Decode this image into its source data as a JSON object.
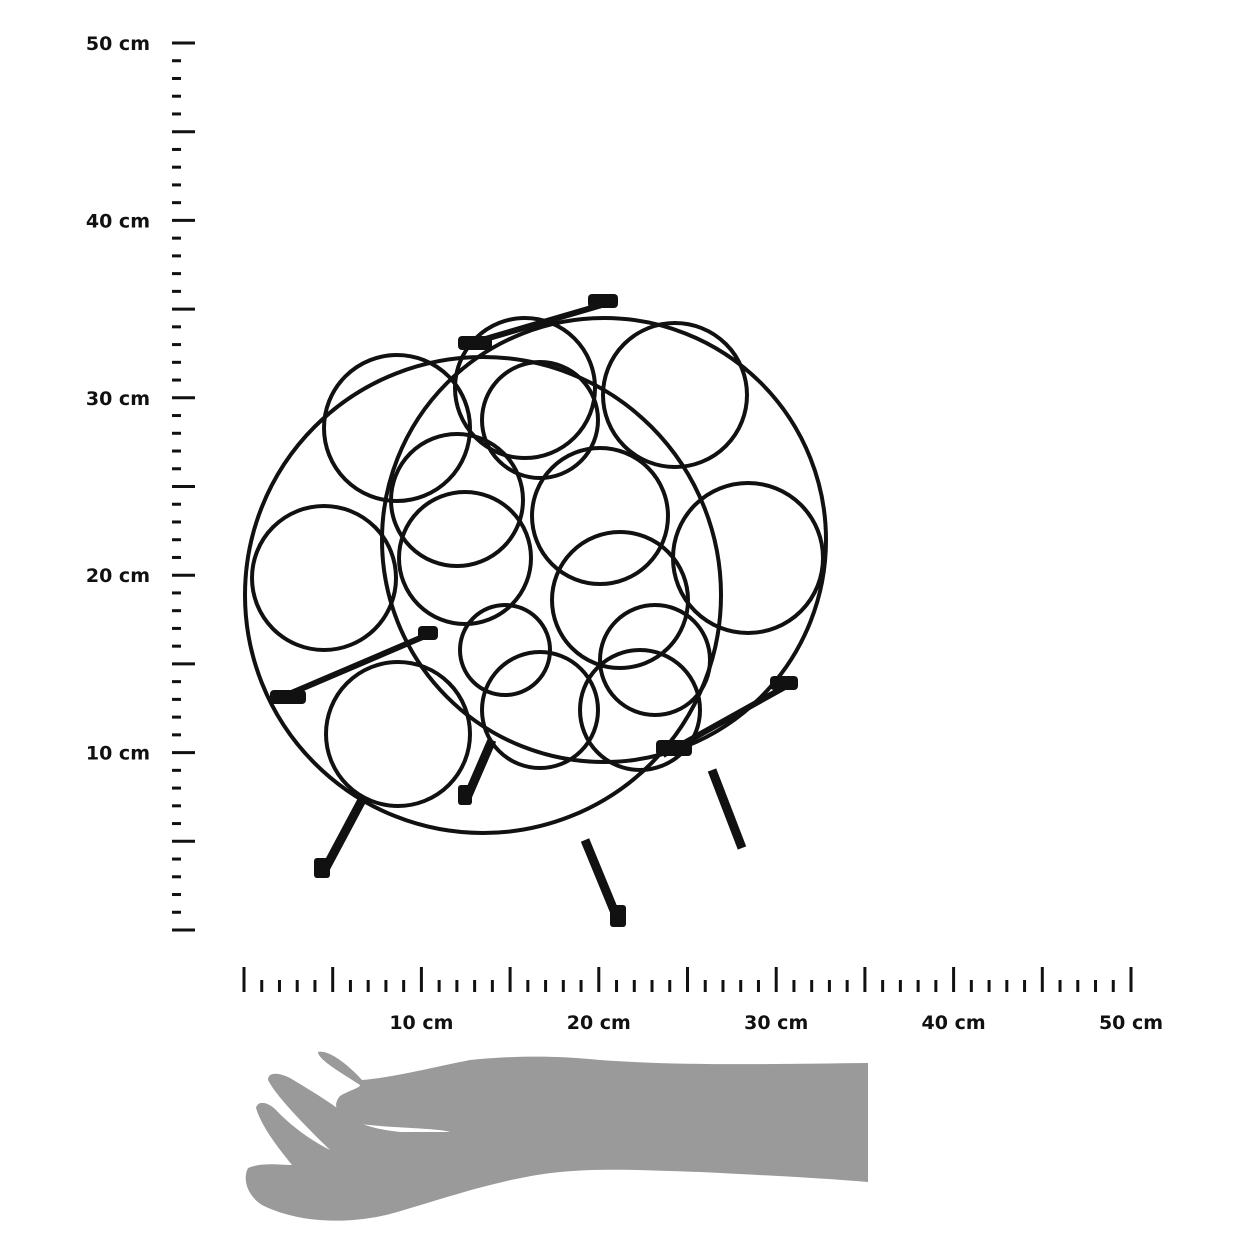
{
  "vertical_ruler": {
    "unit": "cm",
    "labels": [
      "10 cm",
      "20 cm",
      "30 cm",
      "40 cm",
      "50 cm"
    ],
    "max": 50
  },
  "horizontal_ruler": {
    "unit": "cm",
    "labels": [
      "10 cm",
      "20 cm",
      "30 cm",
      "40 cm",
      "50 cm"
    ],
    "max": 50
  },
  "product": {
    "name": "wine-rack",
    "color": "#111111"
  },
  "hand": {
    "color": "#9a9a9a"
  }
}
